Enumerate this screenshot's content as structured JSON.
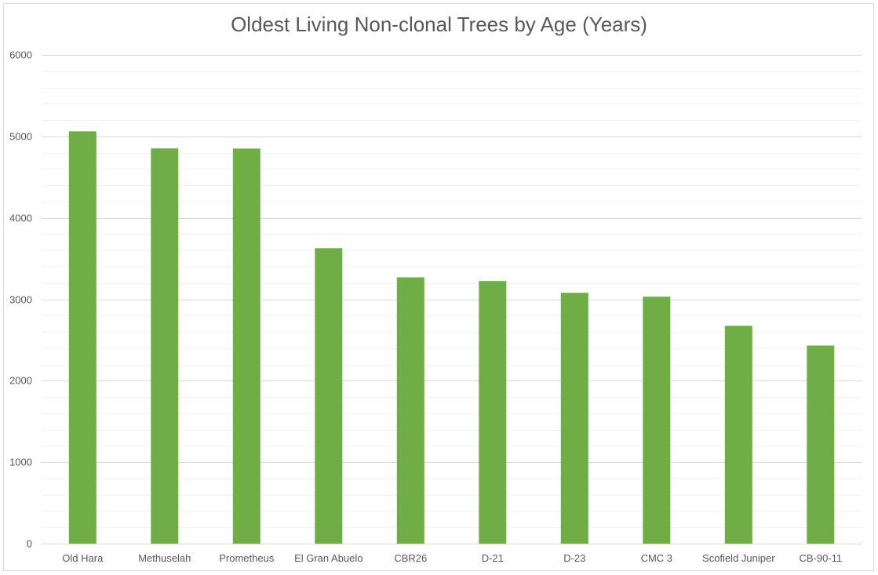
{
  "chart_data": {
    "type": "bar",
    "title": "Oldest Living Non-clonal Trees by Age (Years)",
    "xlabel": "",
    "ylabel": "",
    "categories": [
      "Old Hara",
      "Methuselah",
      "Prometheus",
      "El Gran Abuelo",
      "CBR26",
      "D-21",
      "D-23",
      "CMC 3",
      "Scofield Juniper",
      "CB-90-11"
    ],
    "values": [
      5062,
      4852,
      4850,
      3628,
      3270,
      3224,
      3079,
      3032,
      2674,
      2432
    ],
    "ylim": [
      0,
      6000
    ],
    "yticks": [
      0,
      1000,
      2000,
      3000,
      4000,
      5000,
      6000
    ],
    "grid": true,
    "legend": "none",
    "bar_color": "#70ad47",
    "major_grid_color": "#d9d9d9",
    "minor_grid_color": "#f2f2f2"
  }
}
